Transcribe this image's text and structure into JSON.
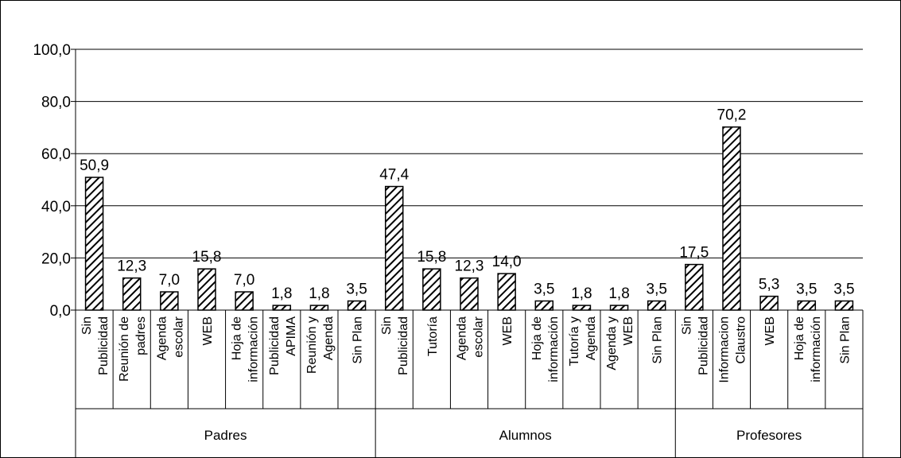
{
  "chart_data": {
    "type": "bar",
    "title": "",
    "xlabel": "",
    "ylabel": "",
    "ylim": [
      0,
      100
    ],
    "y_ticks": [
      "0,0",
      "20,0",
      "40,0",
      "60,0",
      "80,0",
      "100,0"
    ],
    "grid": true,
    "bar_fill": "diagonal-hatch",
    "colors": {
      "bar_stroke": "#000000",
      "hatch": "#000000",
      "background": "#ffffff",
      "grid": "#000000"
    },
    "groups": [
      {
        "name": "Padres",
        "bars": [
          {
            "label": [
              "Sin",
              "Publicidad"
            ],
            "value": 50.9,
            "value_label": "50,9"
          },
          {
            "label": [
              "Reunión de",
              "padres"
            ],
            "value": 12.3,
            "value_label": "12,3"
          },
          {
            "label": [
              "Agenda",
              "escolar"
            ],
            "value": 7.0,
            "value_label": "7,0"
          },
          {
            "label": [
              "WEB"
            ],
            "value": 15.8,
            "value_label": "15,8"
          },
          {
            "label": [
              "Hoja de",
              "información"
            ],
            "value": 7.0,
            "value_label": "7,0"
          },
          {
            "label": [
              "Publicidad",
              "APIMA"
            ],
            "value": 1.8,
            "value_label": "1,8"
          },
          {
            "label": [
              "Reunión y",
              "Agenda"
            ],
            "value": 1.8,
            "value_label": "1,8"
          },
          {
            "label": [
              "Sin Plan"
            ],
            "value": 3.5,
            "value_label": "3,5"
          }
        ]
      },
      {
        "name": "Alumnos",
        "bars": [
          {
            "label": [
              "Sin",
              "Publicidad"
            ],
            "value": 47.4,
            "value_label": "47,4"
          },
          {
            "label": [
              "Tutoría"
            ],
            "value": 15.8,
            "value_label": "15,8"
          },
          {
            "label": [
              "Agenda",
              "escolar"
            ],
            "value": 12.3,
            "value_label": "12,3"
          },
          {
            "label": [
              "WEB"
            ],
            "value": 14.0,
            "value_label": "14,0"
          },
          {
            "label": [
              "Hoja de",
              "información"
            ],
            "value": 3.5,
            "value_label": "3,5"
          },
          {
            "label": [
              "Tutoría y",
              "Agenda"
            ],
            "value": 1.8,
            "value_label": "1,8"
          },
          {
            "label": [
              "Agenda y",
              "WEB"
            ],
            "value": 1.8,
            "value_label": "1,8"
          },
          {
            "label": [
              "Sin Plan"
            ],
            "value": 3.5,
            "value_label": "3,5"
          }
        ]
      },
      {
        "name": "Profesores",
        "bars": [
          {
            "label": [
              "Sin",
              "Publicidad"
            ],
            "value": 17.5,
            "value_label": "17,5"
          },
          {
            "label": [
              "Informacion",
              "Claustro"
            ],
            "value": 70.2,
            "value_label": "70,2"
          },
          {
            "label": [
              "WEB"
            ],
            "value": 5.3,
            "value_label": "5,3"
          },
          {
            "label": [
              "Hoja de",
              "información"
            ],
            "value": 3.5,
            "value_label": "3,5"
          },
          {
            "label": [
              "Sin Plan"
            ],
            "value": 3.5,
            "value_label": "3,5"
          }
        ]
      }
    ]
  }
}
